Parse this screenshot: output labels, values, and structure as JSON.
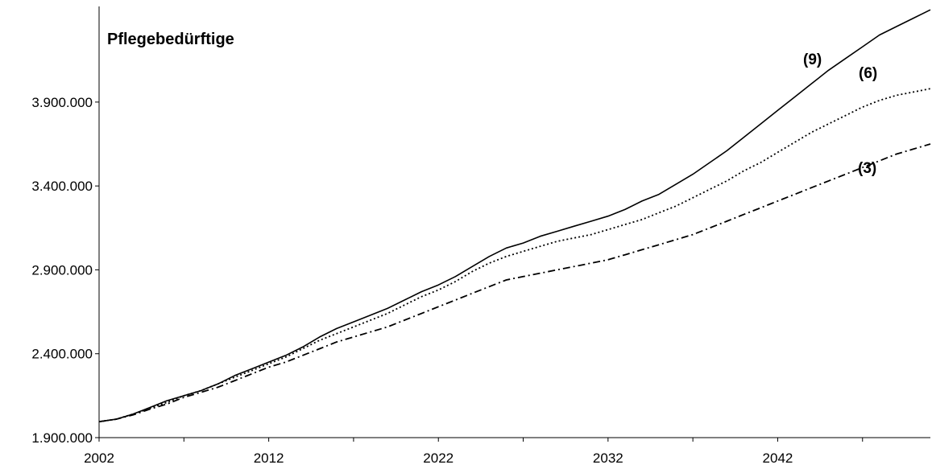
{
  "chart_data": {
    "type": "line",
    "title": "Pflegebedürftige",
    "xlabel": "",
    "ylabel": "",
    "x_ticks": [
      "2002",
      "2012",
      "2022",
      "2032",
      "2042"
    ],
    "y_ticks": [
      "1.900.000",
      "2.400.000",
      "2.900.000",
      "3.400.000",
      "3.900.000"
    ],
    "xlim": [
      2002,
      2051
    ],
    "ylim": [
      1900000,
      4470000
    ],
    "grid": false,
    "legend": "none",
    "series": [
      {
        "name": "(9)",
        "line_style": "solid",
        "x": [
          2002,
          2003,
          2004,
          2005,
          2006,
          2007,
          2008,
          2009,
          2010,
          2011,
          2012,
          2013,
          2014,
          2015,
          2016,
          2017,
          2018,
          2019,
          2020,
          2021,
          2022,
          2023,
          2024,
          2025,
          2026,
          2027,
          2028,
          2029,
          2030,
          2031,
          2032,
          2033,
          2034,
          2035,
          2036,
          2037,
          2038,
          2039,
          2040,
          2041,
          2042,
          2043,
          2044,
          2045,
          2046,
          2047,
          2048,
          2049,
          2050,
          2051
        ],
        "values": [
          1995000,
          2010000,
          2040000,
          2080000,
          2120000,
          2150000,
          2180000,
          2220000,
          2270000,
          2310000,
          2350000,
          2390000,
          2440000,
          2500000,
          2550000,
          2590000,
          2630000,
          2670000,
          2720000,
          2770000,
          2810000,
          2860000,
          2920000,
          2980000,
          3030000,
          3060000,
          3100000,
          3130000,
          3160000,
          3190000,
          3220000,
          3260000,
          3310000,
          3350000,
          3410000,
          3470000,
          3540000,
          3610000,
          3690000,
          3770000,
          3850000,
          3930000,
          4010000,
          4090000,
          4160000,
          4230000,
          4300000,
          4350000,
          4400000,
          4450000
        ]
      },
      {
        "name": "(6)",
        "line_style": "dotted",
        "x": [
          2002,
          2003,
          2004,
          2005,
          2006,
          2007,
          2008,
          2009,
          2010,
          2011,
          2012,
          2013,
          2014,
          2015,
          2016,
          2017,
          2018,
          2019,
          2020,
          2021,
          2022,
          2023,
          2024,
          2025,
          2026,
          2027,
          2028,
          2029,
          2030,
          2031,
          2032,
          2033,
          2034,
          2035,
          2036,
          2037,
          2038,
          2039,
          2040,
          2041,
          2042,
          2043,
          2044,
          2045,
          2046,
          2047,
          2048,
          2049,
          2050,
          2051
        ],
        "values": [
          1995000,
          2010000,
          2040000,
          2075000,
          2110000,
          2150000,
          2180000,
          2220000,
          2260000,
          2300000,
          2340000,
          2380000,
          2430000,
          2480000,
          2520000,
          2560000,
          2600000,
          2640000,
          2690000,
          2740000,
          2780000,
          2830000,
          2890000,
          2940000,
          2980000,
          3010000,
          3040000,
          3070000,
          3090000,
          3110000,
          3140000,
          3170000,
          3200000,
          3240000,
          3280000,
          3330000,
          3380000,
          3430000,
          3490000,
          3540000,
          3600000,
          3660000,
          3720000,
          3770000,
          3820000,
          3870000,
          3910000,
          3940000,
          3960000,
          3980000
        ]
      },
      {
        "name": "(3)",
        "line_style": "dash-dot",
        "x": [
          2002,
          2003,
          2004,
          2005,
          2006,
          2007,
          2008,
          2009,
          2010,
          2011,
          2012,
          2013,
          2014,
          2015,
          2016,
          2017,
          2018,
          2019,
          2020,
          2021,
          2022,
          2023,
          2024,
          2025,
          2026,
          2027,
          2028,
          2029,
          2030,
          2031,
          2032,
          2033,
          2034,
          2035,
          2036,
          2037,
          2038,
          2039,
          2040,
          2041,
          2042,
          2043,
          2044,
          2045,
          2046,
          2047,
          2048,
          2049,
          2050,
          2051
        ],
        "values": [
          1995000,
          2010000,
          2035000,
          2070000,
          2100000,
          2140000,
          2170000,
          2200000,
          2240000,
          2280000,
          2320000,
          2350000,
          2390000,
          2430000,
          2470000,
          2500000,
          2530000,
          2560000,
          2600000,
          2640000,
          2680000,
          2720000,
          2760000,
          2800000,
          2840000,
          2860000,
          2880000,
          2900000,
          2920000,
          2940000,
          2960000,
          2990000,
          3020000,
          3050000,
          3080000,
          3110000,
          3150000,
          3190000,
          3230000,
          3270000,
          3310000,
          3350000,
          3390000,
          3430000,
          3470000,
          3510000,
          3550000,
          3590000,
          3620000,
          3650000
        ]
      }
    ]
  }
}
